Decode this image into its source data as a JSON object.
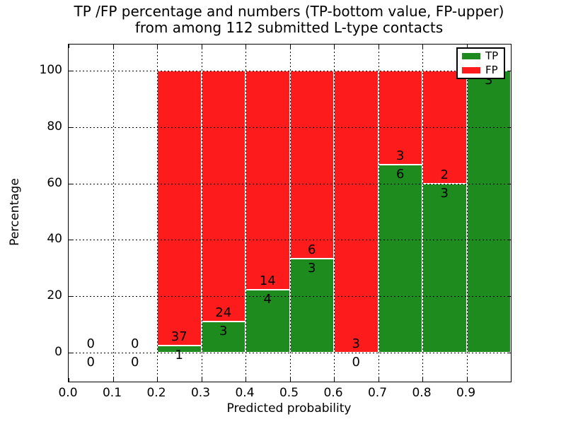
{
  "title": {
    "line1": "TP /FP percentage and numbers (TP-bottom value, FP-upper)",
    "line2": "from among 112 submitted L-type contacts"
  },
  "axes": {
    "x": {
      "label": "Predicted probability",
      "ticks": [
        {
          "v": 0.0,
          "t": "0.0"
        },
        {
          "v": 0.1,
          "t": "0.1"
        },
        {
          "v": 0.2,
          "t": "0.2"
        },
        {
          "v": 0.3,
          "t": "0.3"
        },
        {
          "v": 0.4,
          "t": "0.4"
        },
        {
          "v": 0.5,
          "t": "0.5"
        },
        {
          "v": 0.6,
          "t": "0.6"
        },
        {
          "v": 0.7,
          "t": "0.7"
        },
        {
          "v": 0.8,
          "t": "0.8"
        },
        {
          "v": 0.9,
          "t": "0.9"
        }
      ]
    },
    "y": {
      "label": "Percentage",
      "ticks": [
        {
          "v": 0,
          "t": "0"
        },
        {
          "v": 20,
          "t": "20"
        },
        {
          "v": 40,
          "t": "40"
        },
        {
          "v": 60,
          "t": "60"
        },
        {
          "v": 80,
          "t": "80"
        },
        {
          "v": 100,
          "t": "100"
        }
      ]
    }
  },
  "legend": {
    "items": [
      {
        "label": "TP",
        "color": "#1e8b1e"
      },
      {
        "label": "FP",
        "color": "#fe1b1b"
      }
    ]
  },
  "colors": {
    "tp": "#1e8b1e",
    "fp": "#fe1b1b",
    "bar_edge": "#ffffff",
    "grid": "#000000",
    "text": "#000000"
  },
  "chart_data": {
    "type": "bar",
    "stacked": true,
    "title": "TP /FP percentage and numbers (TP-bottom value, FP-upper) from among 112 submitted L-type contacts",
    "xlabel": "Predicted probability",
    "ylabel": "Percentage",
    "total_contacts": 112,
    "x_bin_edges": [
      0.0,
      0.1,
      0.2,
      0.3,
      0.4,
      0.5,
      0.6,
      0.7,
      0.8,
      0.9,
      1.0
    ],
    "series": [
      {
        "name": "TP",
        "color": "#1e8b1e",
        "counts": [
          0,
          0,
          1,
          3,
          4,
          3,
          0,
          6,
          3,
          3
        ],
        "pct": [
          null,
          null,
          2.63,
          11.11,
          22.22,
          33.33,
          0,
          66.67,
          60,
          100
        ]
      },
      {
        "name": "FP",
        "color": "#fe1b1b",
        "counts": [
          0,
          0,
          37,
          24,
          14,
          6,
          3,
          3,
          2,
          0
        ],
        "pct": [
          null,
          null,
          97.37,
          88.89,
          77.78,
          66.67,
          100,
          33.33,
          40,
          0
        ]
      }
    ],
    "label_rule": "FP count printed above TP/FP boundary, TP count printed below boundary",
    "xlim": [
      0.0,
      1.0
    ],
    "ylim_display": [
      -10.5,
      109.5
    ],
    "grid": true,
    "legend_position": "upper right"
  }
}
